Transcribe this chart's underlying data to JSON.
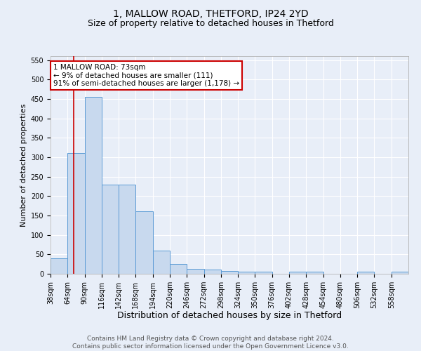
{
  "title1": "1, MALLOW ROAD, THETFORD, IP24 2YD",
  "title2": "Size of property relative to detached houses in Thetford",
  "xlabel": "Distribution of detached houses by size in Thetford",
  "ylabel": "Number of detached properties",
  "bin_edges": [
    38,
    64,
    90,
    116,
    142,
    168,
    194,
    220,
    246,
    272,
    298,
    324,
    350,
    376,
    402,
    428,
    454,
    480,
    506,
    532,
    558,
    584
  ],
  "bar_heights": [
    40,
    310,
    455,
    230,
    230,
    160,
    60,
    25,
    12,
    10,
    7,
    5,
    5,
    0,
    5,
    5,
    0,
    0,
    5,
    0,
    5
  ],
  "bar_color": "#c8d9ee",
  "bar_edgecolor": "#5b9bd5",
  "property_size": 73,
  "vline_color": "#cc0000",
  "annotation_text": "1 MALLOW ROAD: 73sqm\n← 9% of detached houses are smaller (111)\n91% of semi-detached houses are larger (1,178) →",
  "annotation_box_color": "#ffffff",
  "annotation_box_edgecolor": "#cc0000",
  "ylim": [
    0,
    560
  ],
  "yticks": [
    0,
    50,
    100,
    150,
    200,
    250,
    300,
    350,
    400,
    450,
    500,
    550
  ],
  "background_color": "#e8eef8",
  "grid_color": "#ffffff",
  "footer_text": "Contains HM Land Registry data © Crown copyright and database right 2024.\nContains public sector information licensed under the Open Government Licence v3.0.",
  "title1_fontsize": 10,
  "title2_fontsize": 9,
  "xlabel_fontsize": 9,
  "ylabel_fontsize": 8,
  "tick_fontsize": 7,
  "annotation_fontsize": 7.5,
  "footer_fontsize": 6.5
}
